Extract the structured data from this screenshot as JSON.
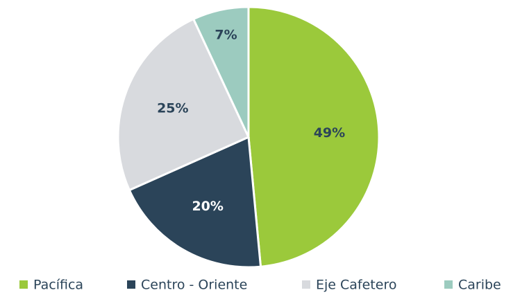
{
  "chart_data": {
    "type": "pie",
    "categories": [
      "Pacífica",
      "Centro - Oriente",
      "Eje Cafetero",
      "Caribe"
    ],
    "values": [
      49,
      20,
      25,
      7
    ],
    "value_labels": [
      "49%",
      "20%",
      "25%",
      "7%"
    ],
    "colors": [
      "#9bc93b",
      "#2b4459",
      "#d8dade",
      "#9ccbbf"
    ],
    "legend": "bottom"
  }
}
